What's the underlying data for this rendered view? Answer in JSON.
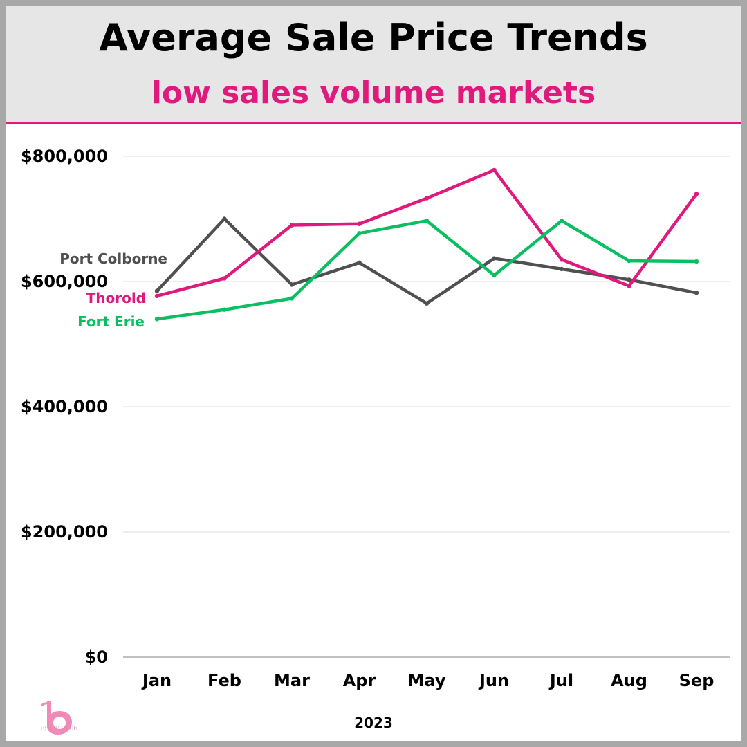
{
  "header": {
    "title": "Average Sale Price Trends",
    "subtitle": "low sales volume markets"
  },
  "logo": {
    "text": "EST'D 2006"
  },
  "colors": {
    "accent": "#e0197d",
    "header_bg": "#e6e6e6",
    "frame": "#a8a8a8"
  },
  "chart_data": {
    "type": "line",
    "title": "Average Sale Price Trends",
    "subtitle": "low sales volume markets",
    "xlabel": "2023",
    "ylabel": "",
    "categories": [
      "Jan",
      "Feb",
      "Mar",
      "Apr",
      "May",
      "Jun",
      "Jul",
      "Aug",
      "Sep"
    ],
    "ylim": [
      0,
      800000
    ],
    "yticks": [
      0,
      200000,
      400000,
      600000,
      800000
    ],
    "ytick_labels": [
      "$0",
      "$200,000",
      "$400,000",
      "$600,000",
      "$800,000"
    ],
    "grid": true,
    "series": [
      {
        "name": "Port Colborne",
        "color": "#505050",
        "values": [
          585000,
          700000,
          595000,
          630000,
          565000,
          637000,
          620000,
          603000,
          582000
        ]
      },
      {
        "name": "Thorold",
        "color": "#e0197d",
        "values": [
          577000,
          605000,
          690000,
          692000,
          733000,
          778000,
          635000,
          593000,
          740000
        ]
      },
      {
        "name": "Fort Erie",
        "color": "#0abf62",
        "values": [
          540000,
          555000,
          573000,
          677000,
          697000,
          610000,
          697000,
          633000,
          632000
        ]
      }
    ]
  }
}
